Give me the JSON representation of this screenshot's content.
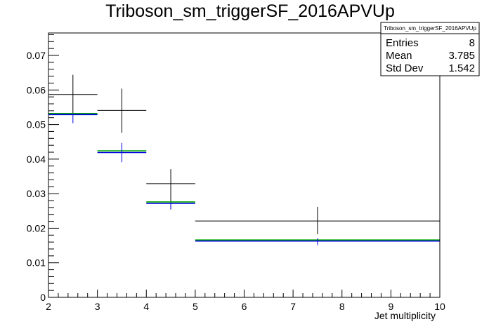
{
  "chart_data": {
    "type": "scatter",
    "title": "Triboson_sm_triggerSF_2016APVUp",
    "xlabel": "Jet multiplicity",
    "ylabel": "",
    "xlim": [
      2,
      10
    ],
    "ylim": [
      0,
      0.0765
    ],
    "xticks": [
      "2",
      "3",
      "4",
      "5",
      "6",
      "7",
      "8",
      "9",
      "10"
    ],
    "yticks": [
      "0",
      "0.01",
      "0.02",
      "0.03",
      "0.04",
      "0.05",
      "0.06",
      "0.07"
    ],
    "bins": [
      [
        2,
        3
      ],
      [
        3,
        4
      ],
      [
        4,
        5
      ],
      [
        5,
        10
      ]
    ],
    "series": [
      {
        "color": "#000000",
        "centers": [
          2.5,
          3.5,
          4.5,
          7.5
        ],
        "values": [
          0.0587,
          0.0541,
          0.0329,
          0.0221
        ],
        "err_low": [
          0.0055,
          0.0065,
          0.0075,
          0.0038
        ],
        "err_high": [
          0.0057,
          0.0063,
          0.0042,
          0.0041
        ]
      },
      {
        "color": "#00aa00",
        "centers": [
          2.5,
          3.5,
          4.5,
          7.5
        ],
        "values": [
          0.0532,
          0.0424,
          0.0276,
          0.0166
        ],
        "err_low": [
          0,
          0,
          0,
          0
        ],
        "err_high": [
          0,
          0,
          0,
          0
        ]
      },
      {
        "color": "#0000dd",
        "centers": [
          2.5,
          3.5,
          4.5,
          7.5
        ],
        "values": [
          0.0529,
          0.0419,
          0.0272,
          0.0163
        ],
        "err_low": [
          0.0025,
          0.0028,
          0.0017,
          0.0012
        ],
        "err_high": [
          0.0,
          0.0028,
          0.0,
          0.0008
        ]
      }
    ],
    "stats": {
      "name": "Triboson_sm_triggerSF_2016APVUp",
      "rows": [
        {
          "label": "Entries",
          "value": "8"
        },
        {
          "label": "Mean",
          "value": "3.785"
        },
        {
          "label": "Std Dev",
          "value": "1.542"
        }
      ]
    }
  }
}
